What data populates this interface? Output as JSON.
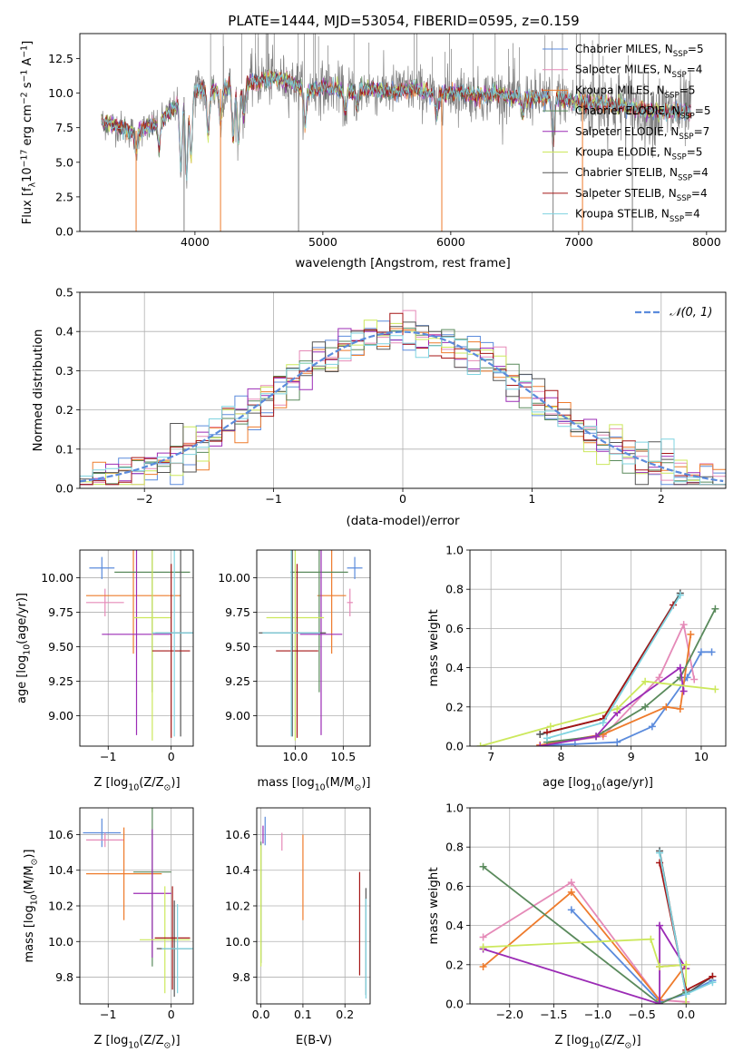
{
  "figure": {
    "title": "PLATE=1444, MJD=53054, FIBERID=0595, z=0.159"
  },
  "colors": {
    "data": "#808080",
    "chabrier_miles": "#5b8bdc",
    "salpeter_miles": "#e58ab8",
    "kroupa_miles": "#ee7b2c",
    "chabrier_elodie": "#5a8a5c",
    "salpeter_elodie": "#9b2bb5",
    "kroupa_elodie": "#cce85c",
    "chabrier_stelib": "#555555",
    "salpeter_stelib": "#a51616",
    "kroupa_stelib": "#7fd3e0",
    "normal": "#5b8bdc"
  },
  "chart_data": [
    {
      "id": "spectrum",
      "type": "line",
      "xlabel": "wavelength [Angstrom, rest frame]",
      "ylabel_pre": "Flux [f",
      "ylabel_sub": "λ",
      "ylabel_mid": "10",
      "ylabel_sup": "−17",
      "ylabel_post": " erg cm",
      "ylabel_sup2": "−2",
      "ylabel_post2": " s",
      "ylabel_sup3": "−1",
      "ylabel_post3": " A",
      "ylabel_sup4": "−1",
      "ylabel_end": "]",
      "xlim": [
        3100,
        8150
      ],
      "ylim": [
        0,
        14.3
      ],
      "xticks": [
        4000,
        5000,
        6000,
        7000,
        8000
      ],
      "yticks": [
        0.0,
        2.5,
        5.0,
        7.5,
        10.0,
        12.5
      ],
      "continuum_x": [
        3270,
        3400,
        3500,
        3600,
        3700,
        3800,
        3900,
        4000,
        4100,
        4200,
        4300,
        4400,
        4500,
        4600,
        4700,
        4800,
        4900,
        5000,
        5100,
        5200,
        5300,
        5400,
        5500,
        5600,
        5700,
        5800,
        5900,
        6000,
        6100,
        6200,
        6300,
        6400,
        6500,
        6600,
        6700,
        6800,
        6900,
        7000,
        7100,
        7200,
        7300,
        7400,
        7500,
        7600,
        7700,
        7800,
        7880
      ],
      "continuum_y": [
        7.9,
        7.6,
        7.2,
        7.4,
        7.8,
        8.6,
        9.6,
        10.3,
        10.2,
        10.3,
        10.6,
        10.7,
        10.9,
        11.0,
        10.9,
        10.6,
        10.2,
        10.4,
        10.3,
        10.1,
        10.2,
        10.3,
        10.1,
        10.2,
        10.3,
        10.1,
        9.9,
        10.0,
        10.1,
        9.8,
        9.9,
        9.9,
        9.7,
        9.7,
        9.6,
        9.8,
        9.5,
        9.3,
        9.2,
        9.3,
        9.1,
        8.9,
        8.8,
        8.7,
        8.6,
        8.7,
        8.6
      ],
      "absorption_x": [
        3540,
        3720,
        3890,
        3935,
        3970,
        4102,
        4200,
        4300,
        4340,
        4383,
        4861,
        5175,
        5270,
        5890,
        6563,
        6800
      ],
      "absorption_y": [
        5.8,
        6.2,
        4.5,
        4.0,
        5.5,
        7.0,
        7.8,
        6.8,
        6.5,
        8.2,
        7.6,
        8.6,
        9.0,
        8.2,
        8.5,
        6.4
      ],
      "spikes_x": [
        3540,
        3915,
        4200,
        4810,
        5930,
        6800,
        7030,
        7420
      ],
      "spikes_y": [
        0.0,
        0.0,
        0.0,
        0.0,
        0.0,
        0.0,
        0.0,
        0.0
      ],
      "legend": [
        {
          "name_pre": "Chabrier MILES, N",
          "sub": "SSP",
          "name_post": "=5",
          "color_key": "chabrier_miles"
        },
        {
          "name_pre": "Salpeter MILES, N",
          "sub": "SSP",
          "name_post": "=4",
          "color_key": "salpeter_miles"
        },
        {
          "name_pre": "Kroupa MILES, N",
          "sub": "SSP",
          "name_post": "=5",
          "color_key": "kroupa_miles"
        },
        {
          "name_pre": "Chabrier ELODIE, N",
          "sub": "SSP",
          "name_post": "=5",
          "color_key": "chabrier_elodie"
        },
        {
          "name_pre": "Salpeter ELODIE, N",
          "sub": "SSP",
          "name_post": "=7",
          "color_key": "salpeter_elodie"
        },
        {
          "name_pre": "Kroupa ELODIE, N",
          "sub": "SSP",
          "name_post": "=5",
          "color_key": "kroupa_elodie"
        },
        {
          "name_pre": "Chabrier STELIB, N",
          "sub": "SSP",
          "name_post": "=4",
          "color_key": "chabrier_stelib"
        },
        {
          "name_pre": "Salpeter STELIB, N",
          "sub": "SSP",
          "name_post": "=4",
          "color_key": "salpeter_stelib"
        },
        {
          "name_pre": "Kroupa STELIB, N",
          "sub": "SSP",
          "name_post": "=4",
          "color_key": "kroupa_stelib"
        }
      ]
    },
    {
      "id": "residuals",
      "type": "histogram",
      "xlabel": "(data-model)/error",
      "ylabel": "Normed distribution",
      "xlim": [
        -2.5,
        2.5
      ],
      "ylim": [
        0,
        0.5
      ],
      "xticks": [
        -2,
        -1,
        0,
        1,
        2
      ],
      "yticks": [
        0.0,
        0.1,
        0.2,
        0.3,
        0.4,
        0.5
      ],
      "grid": true,
      "legend_label": "𝒩(0, 1)",
      "legend_position": "top-right",
      "bin_width": 0.1
    },
    {
      "id": "age_vs_Z",
      "type": "errorbar",
      "xlabel": "Z [log",
      "xlabel_sub": "10",
      "xlabel_post": "(Z/Z",
      "xlabel_sub2": "⊙",
      "xlabel_end": ")]",
      "ylabel": "age  [log",
      "ylabel_sub": "10",
      "ylabel_post": "(age/yr)]",
      "xlim": [
        -1.45,
        0.35
      ],
      "ylim": [
        8.78,
        10.2
      ],
      "xticks": [
        -1,
        0
      ],
      "yticks": [
        9.0,
        9.25,
        9.5,
        9.75,
        10.0
      ],
      "points": [
        {
          "color_key": "chabrier_miles",
          "x": -1.1,
          "xerr": 0.2,
          "y": 10.07,
          "yerr": 0.08
        },
        {
          "color_key": "salpeter_miles",
          "x": -1.05,
          "xerr": 0.3,
          "y": 9.82,
          "yerr": 0.1
        },
        {
          "color_key": "kroupa_miles",
          "x": -0.6,
          "xerr": 0.75,
          "y": 9.87,
          "yerr": 0.42
        },
        {
          "color_key": "chabrier_elodie",
          "x": -0.3,
          "xerr": 0.6,
          "y": 10.04,
          "yerr": 0.87
        },
        {
          "color_key": "salpeter_elodie",
          "x": -0.55,
          "xerr": 0.55,
          "y": 9.59,
          "yerr": 0.73
        },
        {
          "color_key": "kroupa_elodie",
          "x": -0.3,
          "xerr": 0.3,
          "y": 9.71,
          "yerr": 0.89
        },
        {
          "color_key": "chabrier_stelib",
          "x": 0.15,
          "xerr": 0.4,
          "y": 9.6,
          "yerr": 0.75
        },
        {
          "color_key": "salpeter_stelib",
          "x": 0.0,
          "xerr": 0.3,
          "y": 9.47,
          "yerr": 0.63
        },
        {
          "color_key": "kroupa_stelib",
          "x": 0.05,
          "xerr": 0.35,
          "y": 9.6,
          "yerr": 0.75
        }
      ]
    },
    {
      "id": "age_vs_mass",
      "type": "errorbar",
      "xlabel": "mass [log",
      "xlabel_sub": "10",
      "xlabel_post": "(M/M",
      "xlabel_sub2": "⊙",
      "xlabel_end": ")]",
      "xlim": [
        9.6,
        10.78
      ],
      "ylim": [
        8.78,
        10.2
      ],
      "xticks": [
        10.0,
        10.5
      ],
      "yticks": [
        9.0,
        9.25,
        9.5,
        9.75,
        10.0
      ],
      "points": [
        {
          "color_key": "chabrier_miles",
          "x": 10.62,
          "xerr": 0.08,
          "y": 10.07,
          "yerr": 0.08
        },
        {
          "color_key": "salpeter_miles",
          "x": 10.57,
          "xerr": 0.03,
          "y": 9.82,
          "yerr": 0.1
        },
        {
          "color_key": "kroupa_miles",
          "x": 10.38,
          "xerr": 0.15,
          "y": 9.87,
          "yerr": 0.42
        },
        {
          "color_key": "chabrier_elodie",
          "x": 10.25,
          "xerr": 0.3,
          "y": 10.04,
          "yerr": 0.87
        },
        {
          "color_key": "salpeter_elodie",
          "x": 10.27,
          "xerr": 0.22,
          "y": 9.59,
          "yerr": 0.73
        },
        {
          "color_key": "kroupa_elodie",
          "x": 10.0,
          "xerr": 0.3,
          "y": 9.71,
          "yerr": 0.89
        },
        {
          "color_key": "chabrier_stelib",
          "x": 9.97,
          "xerr": 0.35,
          "y": 9.6,
          "yerr": 0.75
        },
        {
          "color_key": "salpeter_stelib",
          "x": 10.02,
          "xerr": 0.22,
          "y": 9.47,
          "yerr": 0.63
        },
        {
          "color_key": "kroupa_stelib",
          "x": 9.96,
          "xerr": 0.3,
          "y": 9.6,
          "yerr": 0.75
        }
      ]
    },
    {
      "id": "weight_vs_age",
      "type": "line",
      "xlabel": "age  [log",
      "xlabel_sub": "10",
      "xlabel_post": "(age/yr)]",
      "ylabel": "mass weight",
      "xlim": [
        6.7,
        10.35
      ],
      "ylim": [
        0,
        1.0
      ],
      "xticks": [
        7,
        8,
        9,
        10
      ],
      "yticks": [
        0.0,
        0.2,
        0.4,
        0.6,
        0.8,
        1.0
      ],
      "grid": true,
      "series": [
        {
          "color_key": "chabrier_miles",
          "x": [
            7.8,
            8.2,
            8.8,
            9.3,
            9.8,
            10.0,
            10.15
          ],
          "y": [
            0.005,
            0.01,
            0.02,
            0.1,
            0.35,
            0.48,
            0.48
          ]
        },
        {
          "color_key": "salpeter_miles",
          "x": [
            7.7,
            8.6,
            9.4,
            9.75,
            9.9
          ],
          "y": [
            0.005,
            0.05,
            0.35,
            0.62,
            0.34
          ]
        },
        {
          "color_key": "kroupa_miles",
          "x": [
            7.7,
            8.6,
            9.5,
            9.7,
            9.85
          ],
          "y": [
            0.005,
            0.06,
            0.2,
            0.19,
            0.57
          ]
        },
        {
          "color_key": "chabrier_elodie",
          "x": [
            7.8,
            8.5,
            9.2,
            9.7,
            10.2
          ],
          "y": [
            0.02,
            0.05,
            0.2,
            0.35,
            0.7
          ]
        },
        {
          "color_key": "salpeter_elodie",
          "x": [
            7.7,
            8.5,
            8.8,
            9.7,
            9.75
          ],
          "y": [
            0.0,
            0.05,
            0.17,
            0.4,
            0.28
          ]
        },
        {
          "color_key": "kroupa_elodie",
          "x": [
            6.85,
            7.85,
            8.8,
            9.2,
            10.2
          ],
          "y": [
            0.0,
            0.1,
            0.19,
            0.33,
            0.29
          ]
        },
        {
          "color_key": "chabrier_stelib",
          "x": [
            7.7,
            8.6,
            9.7
          ],
          "y": [
            0.06,
            0.14,
            0.78
          ]
        },
        {
          "color_key": "salpeter_stelib",
          "x": [
            7.8,
            8.6,
            9.6
          ],
          "y": [
            0.07,
            0.14,
            0.72
          ]
        },
        {
          "color_key": "kroupa_stelib",
          "x": [
            7.8,
            8.6,
            9.7
          ],
          "y": [
            0.04,
            0.12,
            0.77
          ]
        }
      ]
    },
    {
      "id": "mass_vs_Z",
      "type": "errorbar",
      "xlabel": "Z [log",
      "xlabel_sub": "10",
      "xlabel_post": "(Z/Z",
      "xlabel_sub2": "⊙",
      "xlabel_end": ")]",
      "ylabel": "mass [log",
      "ylabel_sub": "10",
      "ylabel_post": "(M/M",
      "ylabel_sub2": "⊙",
      "ylabel_end": ")]",
      "xlim": [
        -1.45,
        0.35
      ],
      "ylim": [
        9.65,
        10.75
      ],
      "xticks": [
        -1,
        0
      ],
      "yticks": [
        9.8,
        10.0,
        10.2,
        10.4,
        10.6
      ],
      "points": [
        {
          "color_key": "chabrier_miles",
          "x": -1.1,
          "xerr": 0.3,
          "y": 10.61,
          "yerr": 0.08
        },
        {
          "color_key": "salpeter_miles",
          "x": -1.05,
          "xerr": 0.3,
          "y": 10.57,
          "yerr": 0.04
        },
        {
          "color_key": "kroupa_miles",
          "x": -0.75,
          "xerr": 0.6,
          "y": 10.38,
          "yerr": 0.26
        },
        {
          "color_key": "chabrier_elodie",
          "x": -0.3,
          "xerr": 0.3,
          "y": 10.39,
          "yerr": 0.53
        },
        {
          "color_key": "salpeter_elodie",
          "x": -0.3,
          "xerr": 0.3,
          "y": 10.27,
          "yerr": 0.36
        },
        {
          "color_key": "kroupa_elodie",
          "x": -0.1,
          "xerr": 0.4,
          "y": 10.01,
          "yerr": 0.3
        },
        {
          "color_key": "chabrier_stelib",
          "x": 0.05,
          "xerr": 0.28,
          "y": 9.96,
          "yerr": 0.27
        },
        {
          "color_key": "salpeter_stelib",
          "x": 0.02,
          "xerr": 0.28,
          "y": 10.02,
          "yerr": 0.29
        },
        {
          "color_key": "kroupa_stelib",
          "x": 0.1,
          "xerr": 0.25,
          "y": 9.96,
          "yerr": 0.25
        }
      ]
    },
    {
      "id": "mass_vs_ebv",
      "type": "errorbar",
      "xlabel": "E(B-V)",
      "xlim": [
        -0.01,
        0.26
      ],
      "ylim": [
        9.65,
        10.75
      ],
      "xticks": [
        0.0,
        0.1,
        0.2
      ],
      "yticks": [
        9.8,
        10.0,
        10.2,
        10.4,
        10.6
      ],
      "points": [
        {
          "color_key": "chabrier_miles",
          "x": 0.01,
          "xerr": 0.0,
          "y": 10.62,
          "yerr": 0.08
        },
        {
          "color_key": "salpeter_miles",
          "x": 0.05,
          "xerr": 0.0,
          "y": 10.56,
          "yerr": 0.05
        },
        {
          "color_key": "kroupa_miles",
          "x": 0.1,
          "xerr": 0.0,
          "y": 10.36,
          "yerr": 0.24
        },
        {
          "color_key": "chabrier_elodie",
          "x": 0.0,
          "xerr": 0.0,
          "y": 10.22,
          "yerr": 0.34
        },
        {
          "color_key": "salpeter_elodie",
          "x": 0.005,
          "xerr": 0.0,
          "y": 10.6,
          "yerr": 0.05
        },
        {
          "color_key": "kroupa_elodie",
          "x": 0.0,
          "xerr": 0.0,
          "y": 10.2,
          "yerr": 0.34
        },
        {
          "color_key": "chabrier_stelib",
          "x": 0.25,
          "xerr": 0.0,
          "y": 10.0,
          "yerr": 0.3
        },
        {
          "color_key": "salpeter_stelib",
          "x": 0.235,
          "xerr": 0.0,
          "y": 10.1,
          "yerr": 0.29
        },
        {
          "color_key": "kroupa_stelib",
          "x": 0.25,
          "xerr": 0.0,
          "y": 9.96,
          "yerr": 0.28
        }
      ]
    },
    {
      "id": "weight_vs_Z",
      "type": "line",
      "xlabel": "Z [log",
      "xlabel_sub": "10",
      "xlabel_post": "(Z/Z",
      "xlabel_sub2": "⊙",
      "xlabel_end": ")]",
      "ylabel": "mass weight",
      "xlim": [
        -2.45,
        0.45
      ],
      "ylim": [
        0,
        1.0
      ],
      "xticks": [
        -2.0,
        -1.5,
        -1.0,
        -0.5,
        0.0
      ],
      "yticks": [
        0.0,
        0.2,
        0.4,
        0.6,
        0.8,
        1.0
      ],
      "grid": true,
      "series": [
        {
          "color_key": "chabrier_miles",
          "x": [
            -1.3,
            -0.3,
            0.0,
            0.3
          ],
          "y": [
            0.48,
            0.01,
            0.05,
            0.12
          ]
        },
        {
          "color_key": "salpeter_miles",
          "x": [
            -2.3,
            -1.3,
            -0.3,
            0.0
          ],
          "y": [
            0.34,
            0.62,
            0.02,
            0.01
          ]
        },
        {
          "color_key": "kroupa_miles",
          "x": [
            -2.3,
            -1.3,
            -0.3,
            0.0,
            -0.3
          ],
          "y": [
            0.19,
            0.57,
            0.02,
            0.2,
            0.19
          ]
        },
        {
          "color_key": "chabrier_elodie",
          "x": [
            -2.3,
            -0.3,
            0.0
          ],
          "y": [
            0.7,
            0.0,
            0.06
          ]
        },
        {
          "color_key": "salpeter_elodie",
          "x": [
            -2.3,
            -0.3,
            -0.3,
            0.0
          ],
          "y": [
            0.28,
            0.0,
            0.4,
            0.18
          ]
        },
        {
          "color_key": "kroupa_elodie",
          "x": [
            -2.3,
            -0.4,
            -0.3,
            0.0,
            0.0
          ],
          "y": [
            0.29,
            0.33,
            0.19,
            0.2,
            0.0
          ]
        },
        {
          "color_key": "chabrier_stelib",
          "x": [
            -0.3,
            0.0,
            0.3
          ],
          "y": [
            0.78,
            0.05,
            0.14
          ]
        },
        {
          "color_key": "salpeter_stelib",
          "x": [
            -0.3,
            0.0,
            0.3
          ],
          "y": [
            0.72,
            0.07,
            0.14
          ]
        },
        {
          "color_key": "kroupa_stelib",
          "x": [
            -0.3,
            0.0,
            0.3
          ],
          "y": [
            0.77,
            0.05,
            0.11
          ]
        }
      ]
    }
  ]
}
